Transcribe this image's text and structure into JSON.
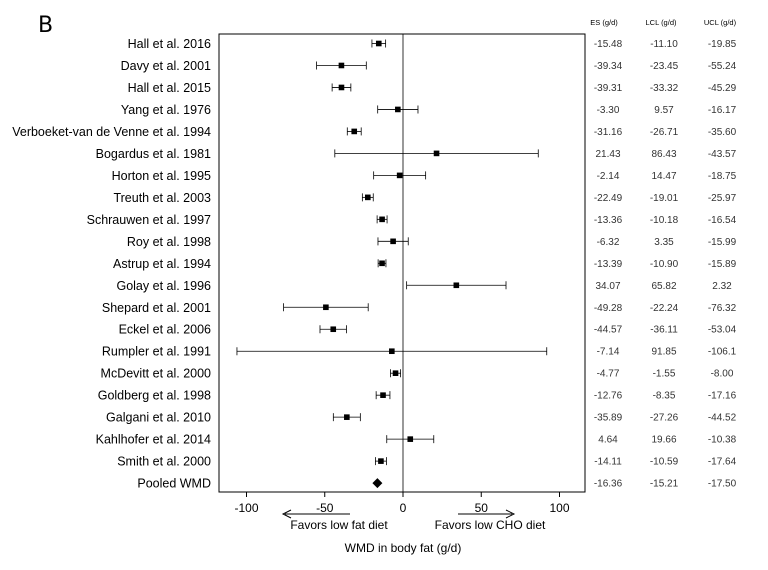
{
  "panel_label": "B",
  "table_headers": [
    "ES (g/d)",
    "LCL (g/d)",
    "UCL (g/d)"
  ],
  "direction_labels": {
    "left": "Favors low fat diet",
    "right": "Favors low CHO diet"
  },
  "chart_data": {
    "type": "forest",
    "xlabel": "WMD in body fat (g/d)",
    "xlim": [
      -110,
      100
    ],
    "xticks": [
      -100,
      -50,
      0,
      50,
      100
    ],
    "xtick_labels": [
      "-100",
      "-50",
      "0",
      "50",
      "100"
    ],
    "reference_line": 0,
    "studies": [
      {
        "name": "Hall et al. 2016",
        "es": -15.48,
        "lcl": -11.1,
        "ucl": -19.85,
        "es_txt": "-15.48",
        "lcl_txt": "-11.10",
        "ucl_txt": "-19.85"
      },
      {
        "name": "Davy et al. 2001",
        "es": -39.34,
        "lcl": -23.45,
        "ucl": -55.24,
        "es_txt": "-39.34",
        "lcl_txt": "-23.45",
        "ucl_txt": "-55.24"
      },
      {
        "name": "Hall et al. 2015",
        "es": -39.31,
        "lcl": -33.32,
        "ucl": -45.29,
        "es_txt": "-39.31",
        "lcl_txt": "-33.32",
        "ucl_txt": "-45.29"
      },
      {
        "name": "Yang et al. 1976",
        "es": -3.3,
        "lcl": 9.57,
        "ucl": -16.17,
        "es_txt": "-3.30",
        "lcl_txt": "9.57",
        "ucl_txt": "-16.17"
      },
      {
        "name": "Verboeket-van de Venne et al. 1994",
        "es": -31.16,
        "lcl": -26.71,
        "ucl": -35.6,
        "es_txt": "-31.16",
        "lcl_txt": "-26.71",
        "ucl_txt": "-35.60"
      },
      {
        "name": "Bogardus et al. 1981",
        "es": 21.43,
        "lcl": 86.43,
        "ucl": -43.57,
        "es_txt": "21.43",
        "lcl_txt": "86.43",
        "ucl_txt": "-43.57"
      },
      {
        "name": "Horton et al. 1995",
        "es": -2.14,
        "lcl": 14.47,
        "ucl": -18.75,
        "es_txt": "-2.14",
        "lcl_txt": "14.47",
        "ucl_txt": "-18.75"
      },
      {
        "name": "Treuth et al. 2003",
        "es": -22.49,
        "lcl": -19.01,
        "ucl": -25.97,
        "es_txt": "-22.49",
        "lcl_txt": "-19.01",
        "ucl_txt": "-25.97"
      },
      {
        "name": "Schrauwen et al. 1997",
        "es": -13.36,
        "lcl": -10.18,
        "ucl": -16.54,
        "es_txt": "-13.36",
        "lcl_txt": "-10.18",
        "ucl_txt": "-16.54"
      },
      {
        "name": "Roy et al. 1998",
        "es": -6.32,
        "lcl": 3.35,
        "ucl": -15.99,
        "es_txt": "-6.32",
        "lcl_txt": "3.35",
        "ucl_txt": "-15.99"
      },
      {
        "name": "Astrup et al. 1994",
        "es": -13.39,
        "lcl": -10.9,
        "ucl": -15.89,
        "es_txt": "-13.39",
        "lcl_txt": "-10.90",
        "ucl_txt": "-15.89"
      },
      {
        "name": "Golay et al. 1996",
        "es": 34.07,
        "lcl": 65.82,
        "ucl": 2.32,
        "es_txt": "34.07",
        "lcl_txt": "65.82",
        "ucl_txt": "2.32"
      },
      {
        "name": "Shepard et al. 2001",
        "es": -49.28,
        "lcl": -22.24,
        "ucl": -76.32,
        "es_txt": "-49.28",
        "lcl_txt": "-22.24",
        "ucl_txt": "-76.32"
      },
      {
        "name": "Eckel et al. 2006",
        "es": -44.57,
        "lcl": -36.11,
        "ucl": -53.04,
        "es_txt": "-44.57",
        "lcl_txt": "-36.11",
        "ucl_txt": "-53.04"
      },
      {
        "name": "Rumpler et al. 1991",
        "es": -7.14,
        "lcl": 91.85,
        "ucl": -106.1,
        "es_txt": "-7.14",
        "lcl_txt": "91.85",
        "ucl_txt": "-106.1"
      },
      {
        "name": "McDevitt et al. 2000",
        "es": -4.77,
        "lcl": -1.55,
        "ucl": -8.0,
        "es_txt": "-4.77",
        "lcl_txt": "-1.55",
        "ucl_txt": "-8.00"
      },
      {
        "name": "Goldberg et al. 1998",
        "es": -12.76,
        "lcl": -8.35,
        "ucl": -17.16,
        "es_txt": "-12.76",
        "lcl_txt": "-8.35",
        "ucl_txt": "-17.16"
      },
      {
        "name": "Galgani et al. 2010",
        "es": -35.89,
        "lcl": -27.26,
        "ucl": -44.52,
        "es_txt": "-35.89",
        "lcl_txt": "-27.26",
        "ucl_txt": "-44.52"
      },
      {
        "name": "Kahlhofer et al. 2014",
        "es": 4.64,
        "lcl": 19.66,
        "ucl": -10.38,
        "es_txt": "4.64",
        "lcl_txt": "19.66",
        "ucl_txt": "-10.38"
      },
      {
        "name": "Smith et al. 2000",
        "es": -14.11,
        "lcl": -10.59,
        "ucl": -17.64,
        "es_txt": "-14.11",
        "lcl_txt": "-10.59",
        "ucl_txt": "-17.64"
      }
    ],
    "pooled": {
      "name": "Pooled WMD",
      "es": -16.36,
      "lcl": -15.21,
      "ucl": -17.5,
      "es_txt": "-16.36",
      "lcl_txt": "-15.21",
      "ucl_txt": "-17.50"
    }
  }
}
